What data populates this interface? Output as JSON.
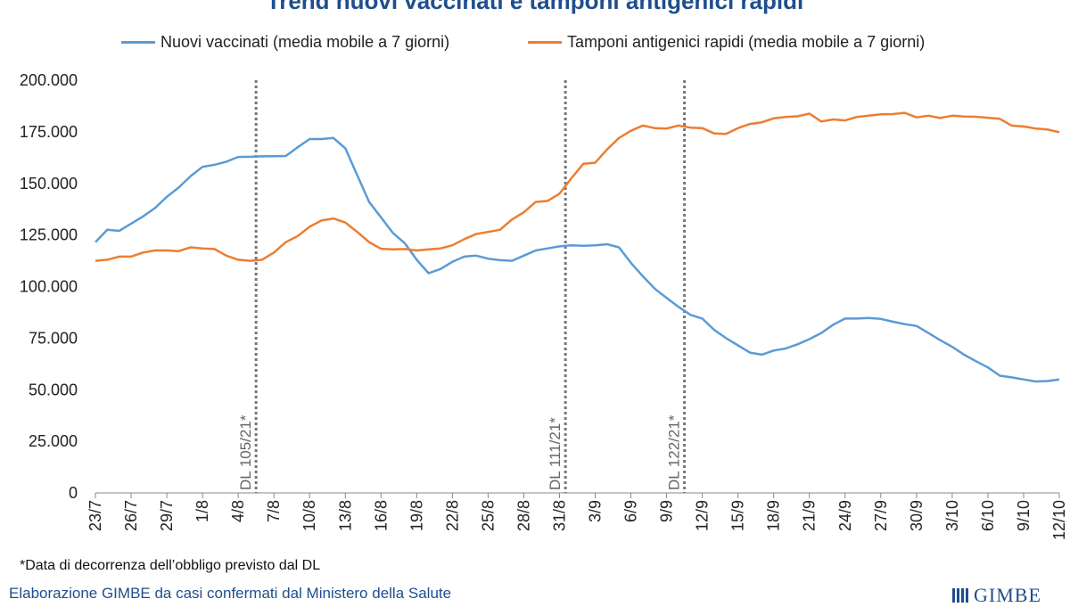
{
  "title": "Trend nuovi vaccinati e tamponi antigenici rapidi",
  "footnote": "*Data di decorrenza dell’obbligo previsto dal DL",
  "credits": "Elaborazione GIMBE da casi confermati dal Ministero della Salute",
  "brand": "GIMBE",
  "chart_data": {
    "type": "line",
    "title": "Trend nuovi vaccinati e tamponi antigenici rapidi",
    "xlabel": "",
    "ylabel": "",
    "ylim": [
      0,
      200000
    ],
    "yticks": [
      "0",
      "25.000",
      "50.000",
      "75.000",
      "100.000",
      "125.000",
      "150.000",
      "175.000",
      "200.000"
    ],
    "grid": false,
    "legend": "top",
    "categories": [
      "23/7",
      "24/7",
      "25/7",
      "26/7",
      "27/7",
      "28/7",
      "29/7",
      "30/7",
      "31/7",
      "1/8",
      "2/8",
      "3/8",
      "4/8",
      "5/8",
      "6/8",
      "7/8",
      "8/8",
      "9/8",
      "10/8",
      "11/8",
      "12/8",
      "13/8",
      "14/8",
      "15/8",
      "16/8",
      "17/8",
      "18/8",
      "19/8",
      "20/8",
      "21/8",
      "22/8",
      "23/8",
      "24/8",
      "25/8",
      "26/8",
      "27/8",
      "28/8",
      "29/8",
      "30/8",
      "31/8",
      "1/9",
      "2/9",
      "3/9",
      "4/9",
      "5/9",
      "6/9",
      "7/9",
      "8/9",
      "9/9",
      "10/9",
      "11/9",
      "12/9",
      "13/9",
      "14/9",
      "15/9",
      "16/9",
      "17/9",
      "18/9",
      "19/9",
      "20/9",
      "21/9",
      "22/9",
      "23/9",
      "24/9",
      "25/9",
      "26/9",
      "27/9",
      "28/9",
      "29/9",
      "30/9",
      "1/10",
      "2/10",
      "3/10",
      "4/10",
      "5/10",
      "6/10",
      "7/10",
      "8/10",
      "9/10",
      "10/10",
      "11/10",
      "12/10"
    ],
    "xtick_labels": [
      "23/7",
      "26/7",
      "29/7",
      "1/8",
      "4/8",
      "7/8",
      "10/8",
      "13/8",
      "16/8",
      "19/8",
      "22/8",
      "25/8",
      "28/8",
      "31/8",
      "3/9",
      "6/9",
      "9/9",
      "12/9",
      "15/9",
      "18/9",
      "21/9",
      "24/9",
      "27/9",
      "30/9",
      "3/10",
      "6/10",
      "9/10",
      "12/10"
    ],
    "series": [
      {
        "name": "Nuovi vaccinati (media mobile a 7 giorni)",
        "color": "#5b9bd5",
        "values": [
          121500,
          127500,
          127000,
          130500,
          134000,
          138000,
          143500,
          148000,
          153500,
          158000,
          159000,
          160500,
          162800,
          162900,
          163100,
          163200,
          163300,
          167500,
          171500,
          171500,
          172000,
          167000,
          154000,
          141000,
          133500,
          126000,
          121000,
          113000,
          106500,
          108500,
          112000,
          114500,
          115000,
          113500,
          112800,
          112500,
          115000,
          117500,
          118500,
          119500,
          120000,
          119800,
          120000,
          120500,
          119000,
          111500,
          105000,
          99000,
          94500,
          90200,
          86300,
          84500,
          79000,
          75000,
          71500,
          68000,
          67000,
          69000,
          70000,
          72000,
          74500,
          77500,
          81500,
          84500,
          84500,
          84800,
          84300,
          83000,
          81800,
          80900,
          77500,
          74000,
          70800,
          67000,
          63800,
          60800,
          56800,
          56000,
          55000,
          54000,
          54200,
          55000
        ]
      },
      {
        "name": "Tamponi antigenici rapidi (media mobile a 7 giorni)",
        "color": "#ed7d31",
        "values": [
          112500,
          113000,
          114500,
          114500,
          116500,
          117500,
          117500,
          117200,
          119000,
          118500,
          118200,
          115000,
          113000,
          112500,
          113000,
          116500,
          121500,
          124500,
          129000,
          132000,
          133000,
          131000,
          126500,
          121500,
          118300,
          118000,
          118200,
          117500,
          118000,
          118500,
          120000,
          123000,
          125500,
          126500,
          127500,
          132500,
          136000,
          141000,
          141500,
          145000,
          152500,
          159500,
          160000,
          166500,
          172000,
          175500,
          178000,
          176800,
          176600,
          178000,
          177000,
          176800,
          174200,
          174000,
          176800,
          178800,
          179600,
          181500,
          182200,
          182500,
          183800,
          180000,
          181000,
          180500,
          182200,
          182800,
          183500,
          183600,
          184200,
          182000,
          182800,
          181700,
          182800,
          182400,
          182300,
          181800,
          181300,
          178000,
          177600,
          176600,
          176100,
          174800
        ]
      }
    ],
    "vlines": [
      {
        "after": "5/8",
        "label": "DL 105/21*"
      },
      {
        "after": "31/8",
        "label": "DL 111/21*"
      },
      {
        "after": "10/9",
        "label": "DL 122/21*"
      }
    ]
  }
}
